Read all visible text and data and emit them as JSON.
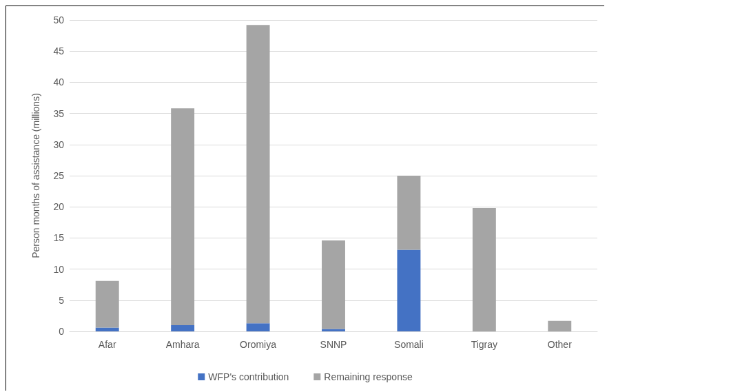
{
  "chart_data": {
    "type": "bar",
    "stacked": true,
    "ylabel": "Person months of assistance (millions)",
    "categories": [
      "Afar",
      "Amhara",
      "Oromiya",
      "SNNP",
      "Somali",
      "Tigray",
      "Other"
    ],
    "series": [
      {
        "name": "WFP's contribution",
        "color": "#4472c4",
        "values": [
          0.6,
          1.0,
          1.3,
          0.4,
          13.1,
          0,
          0
        ]
      },
      {
        "name": "Remaining response",
        "color": "#a5a5a5",
        "values": [
          7.5,
          34.8,
          47.9,
          14.2,
          11.9,
          19.8,
          1.7
        ]
      }
    ],
    "ylim": [
      0,
      50
    ],
    "yticks": [
      0,
      5,
      10,
      15,
      20,
      25,
      30,
      35,
      40,
      45,
      50
    ],
    "grid": "y",
    "legend": "bottom"
  }
}
